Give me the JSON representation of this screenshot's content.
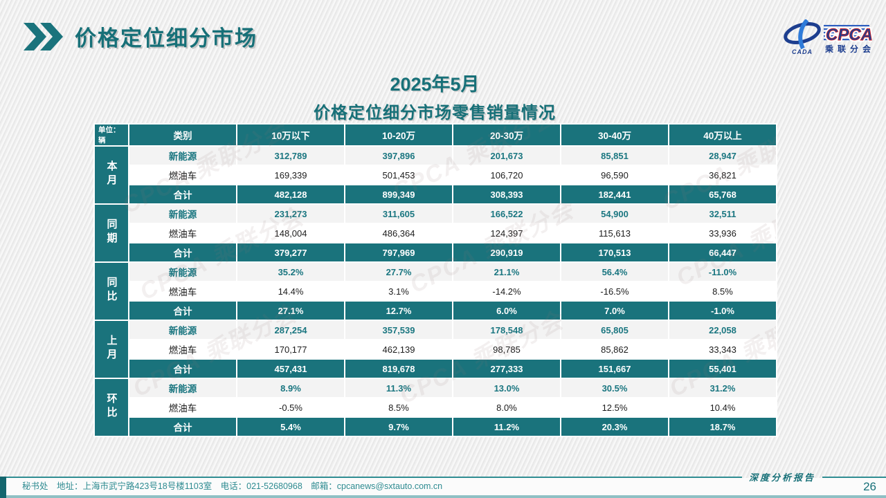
{
  "page": {
    "title": "价格定位细分市场",
    "report_label": "深度分析报告",
    "page_number": "26",
    "footer_text": "秘书处　地址：上海市武宁路423号18号楼1103室　电话：021-52680968　邮箱：cpcanews@sxtauto.com.cn"
  },
  "logo": {
    "cpca": "CPCA",
    "cada": "CADA",
    "subtitle": "乘联分会"
  },
  "subtitle": {
    "line1": "2025年5月",
    "line2": "价格定位细分市场零售销量情况"
  },
  "watermark": {
    "text": "CPCA 乘联分会"
  },
  "colors": {
    "teal": "#1a737c",
    "accent_dark_teal": "#14666e",
    "title_teal": "#177078",
    "logo_navy": "#1d3e8f",
    "logo_red": "#cc2229"
  },
  "table": {
    "unit_label": "单位：辆",
    "columns": [
      "类别",
      "10万以下",
      "10-20万",
      "20-30万",
      "30-40万",
      "40万以上"
    ],
    "groups": [
      {
        "label": "本月",
        "rows": [
          {
            "label": "新能源",
            "type": "nev",
            "values": [
              "312,789",
              "397,896",
              "201,673",
              "85,851",
              "28,947"
            ]
          },
          {
            "label": "燃油车",
            "type": "fuel",
            "values": [
              "169,339",
              "501,453",
              "106,720",
              "96,590",
              "36,821"
            ]
          },
          {
            "label": "合计",
            "type": "total",
            "values": [
              "482,128",
              "899,349",
              "308,393",
              "182,441",
              "65,768"
            ]
          }
        ]
      },
      {
        "label": "同期",
        "rows": [
          {
            "label": "新能源",
            "type": "nev",
            "values": [
              "231,273",
              "311,605",
              "166,522",
              "54,900",
              "32,511"
            ]
          },
          {
            "label": "燃油车",
            "type": "fuel",
            "values": [
              "148,004",
              "486,364",
              "124,397",
              "115,613",
              "33,936"
            ]
          },
          {
            "label": "合计",
            "type": "total",
            "values": [
              "379,277",
              "797,969",
              "290,919",
              "170,513",
              "66,447"
            ]
          }
        ]
      },
      {
        "label": "同比",
        "rows": [
          {
            "label": "新能源",
            "type": "nev",
            "values": [
              "35.2%",
              "27.7%",
              "21.1%",
              "56.4%",
              "-11.0%"
            ]
          },
          {
            "label": "燃油车",
            "type": "fuel",
            "values": [
              "14.4%",
              "3.1%",
              "-14.2%",
              "-16.5%",
              "8.5%"
            ]
          },
          {
            "label": "合计",
            "type": "total",
            "values": [
              "27.1%",
              "12.7%",
              "6.0%",
              "7.0%",
              "-1.0%"
            ]
          }
        ]
      },
      {
        "label": "上月",
        "rows": [
          {
            "label": "新能源",
            "type": "nev",
            "values": [
              "287,254",
              "357,539",
              "178,548",
              "65,805",
              "22,058"
            ]
          },
          {
            "label": "燃油车",
            "type": "fuel",
            "values": [
              "170,177",
              "462,139",
              "98,785",
              "85,862",
              "33,343"
            ]
          },
          {
            "label": "合计",
            "type": "total",
            "values": [
              "457,431",
              "819,678",
              "277,333",
              "151,667",
              "55,401"
            ]
          }
        ]
      },
      {
        "label": "环比",
        "rows": [
          {
            "label": "新能源",
            "type": "nev",
            "values": [
              "8.9%",
              "11.3%",
              "13.0%",
              "30.5%",
              "31.2%"
            ]
          },
          {
            "label": "燃油车",
            "type": "fuel",
            "values": [
              "-0.5%",
              "8.5%",
              "8.0%",
              "12.5%",
              "10.4%"
            ]
          },
          {
            "label": "合计",
            "type": "total",
            "values": [
              "5.4%",
              "9.7%",
              "11.2%",
              "20.3%",
              "18.7%"
            ]
          }
        ]
      }
    ]
  }
}
